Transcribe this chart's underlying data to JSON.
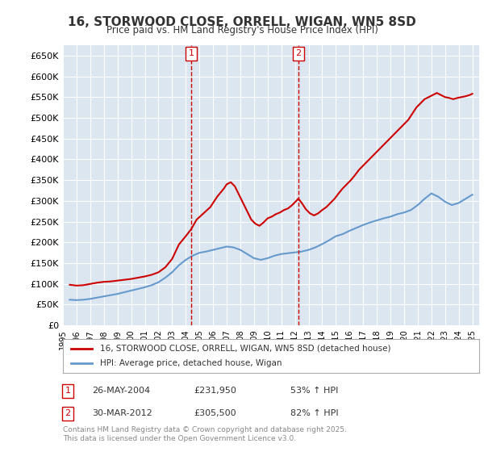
{
  "title": "16, STORWOOD CLOSE, ORRELL, WIGAN, WN5 8SD",
  "subtitle": "Price paid vs. HM Land Registry's House Price Index (HPI)",
  "background_color": "#ffffff",
  "plot_bg_color": "#dce6f1",
  "grid_color": "#ffffff",
  "ylim": [
    0,
    675000
  ],
  "yticks": [
    0,
    50000,
    100000,
    150000,
    200000,
    250000,
    300000,
    350000,
    400000,
    450000,
    500000,
    550000,
    600000,
    650000
  ],
  "xlim_start": 1995.0,
  "xlim_end": 2025.5,
  "xticks": [
    "1995",
    "1996",
    "1997",
    "1998",
    "1999",
    "2000",
    "2001",
    "2002",
    "2003",
    "2004",
    "2005",
    "2006",
    "2007",
    "2008",
    "2009",
    "2010",
    "2011",
    "2012",
    "2013",
    "2014",
    "2015",
    "2016",
    "2017",
    "2018",
    "2019",
    "2020",
    "2021",
    "2022",
    "2023",
    "2024",
    "2025"
  ],
  "sold_label": "16, STORWOOD CLOSE, ORRELL, WIGAN, WN5 8SD (detached house)",
  "hpi_label": "HPI: Average price, detached house, Wigan",
  "sold_color": "#cc0000",
  "hpi_color": "#6699cc",
  "transaction1_date": 2004.4,
  "transaction1_price": 231950,
  "transaction1_label": "1",
  "transaction2_date": 2012.25,
  "transaction2_price": 305500,
  "transaction2_label": "2",
  "annotation1": "1    26-MAY-2004         £231,950         53% ↑ HPI",
  "annotation2": "2    30-MAR-2012         £305,500         82% ↑ HPI",
  "footnote": "Contains HM Land Registry data © Crown copyright and database right 2025.\nThis data is licensed under the Open Government Licence v3.0.",
  "sold_data_x": [
    1995.5,
    1996.0,
    1996.5,
    1997.0,
    1997.5,
    1998.0,
    1998.5,
    1999.0,
    1999.5,
    2000.0,
    2000.5,
    2001.0,
    2001.5,
    2002.0,
    2002.5,
    2003.0,
    2003.5,
    2004.0,
    2004.4,
    2004.8,
    2005.3,
    2005.8,
    2006.3,
    2006.8,
    2007.0,
    2007.3,
    2007.6,
    2007.9,
    2008.2,
    2008.5,
    2008.8,
    2009.1,
    2009.4,
    2009.7,
    2010.0,
    2010.3,
    2010.6,
    2010.9,
    2011.2,
    2011.5,
    2011.8,
    2012.1,
    2012.25,
    2012.5,
    2012.8,
    2013.1,
    2013.4,
    2013.7,
    2014.0,
    2014.3,
    2014.6,
    2014.9,
    2015.2,
    2015.5,
    2015.8,
    2016.1,
    2016.4,
    2016.7,
    2017.0,
    2017.3,
    2017.6,
    2017.9,
    2018.2,
    2018.5,
    2018.8,
    2019.1,
    2019.4,
    2019.7,
    2020.0,
    2020.3,
    2020.6,
    2020.9,
    2021.2,
    2021.5,
    2021.8,
    2022.1,
    2022.4,
    2022.7,
    2023.0,
    2023.3,
    2023.6,
    2023.9,
    2024.2,
    2024.5,
    2024.8,
    2025.0
  ],
  "sold_data_y": [
    98000,
    96000,
    97000,
    100000,
    103000,
    105000,
    106000,
    108000,
    110000,
    112000,
    115000,
    118000,
    122000,
    128000,
    140000,
    160000,
    195000,
    215000,
    231950,
    255000,
    270000,
    285000,
    310000,
    330000,
    340000,
    345000,
    335000,
    315000,
    295000,
    275000,
    255000,
    245000,
    240000,
    248000,
    258000,
    262000,
    268000,
    272000,
    278000,
    282000,
    290000,
    300000,
    305500,
    295000,
    280000,
    270000,
    265000,
    270000,
    278000,
    285000,
    295000,
    305000,
    318000,
    330000,
    340000,
    350000,
    362000,
    375000,
    385000,
    395000,
    405000,
    415000,
    425000,
    435000,
    445000,
    455000,
    465000,
    475000,
    485000,
    495000,
    510000,
    525000,
    535000,
    545000,
    550000,
    555000,
    560000,
    555000,
    550000,
    548000,
    545000,
    548000,
    550000,
    552000,
    555000,
    558000
  ],
  "hpi_data_x": [
    1995.5,
    1996.0,
    1996.5,
    1997.0,
    1997.5,
    1998.0,
    1998.5,
    1999.0,
    1999.5,
    2000.0,
    2000.5,
    2001.0,
    2001.5,
    2002.0,
    2002.5,
    2003.0,
    2003.5,
    2004.0,
    2004.5,
    2005.0,
    2005.5,
    2006.0,
    2006.5,
    2007.0,
    2007.5,
    2008.0,
    2008.5,
    2009.0,
    2009.5,
    2010.0,
    2010.5,
    2011.0,
    2011.5,
    2012.0,
    2012.5,
    2013.0,
    2013.5,
    2014.0,
    2014.5,
    2015.0,
    2015.5,
    2016.0,
    2016.5,
    2017.0,
    2017.5,
    2018.0,
    2018.5,
    2019.0,
    2019.5,
    2020.0,
    2020.5,
    2021.0,
    2021.5,
    2022.0,
    2022.5,
    2023.0,
    2023.5,
    2024.0,
    2024.5,
    2025.0
  ],
  "hpi_data_y": [
    62000,
    61000,
    62000,
    64000,
    67000,
    70000,
    73000,
    76000,
    80000,
    84000,
    88000,
    92000,
    97000,
    104000,
    115000,
    128000,
    145000,
    158000,
    168000,
    175000,
    178000,
    182000,
    186000,
    190000,
    188000,
    182000,
    172000,
    162000,
    158000,
    162000,
    168000,
    172000,
    174000,
    176000,
    178000,
    182000,
    188000,
    196000,
    205000,
    215000,
    220000,
    228000,
    235000,
    242000,
    248000,
    253000,
    258000,
    262000,
    268000,
    272000,
    278000,
    290000,
    305000,
    318000,
    310000,
    298000,
    290000,
    295000,
    305000,
    315000
  ]
}
